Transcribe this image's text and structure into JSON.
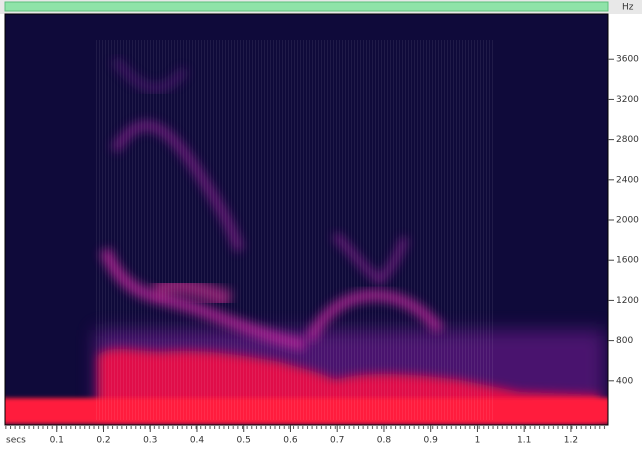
{
  "chart_data": {
    "type": "spectrogram",
    "x_label": "secs",
    "y_label": "Hz",
    "xlim": [
      0,
      1.29
    ],
    "ylim": [
      0,
      4050
    ],
    "xticks": [
      0.1,
      0.2,
      0.3,
      0.4,
      0.5,
      0.6,
      0.7,
      0.8,
      0.9,
      1.0,
      1.1,
      1.2
    ],
    "yticks": [
      400,
      800,
      1200,
      1600,
      2000,
      2400,
      2800,
      3200,
      3600
    ]
  }
}
